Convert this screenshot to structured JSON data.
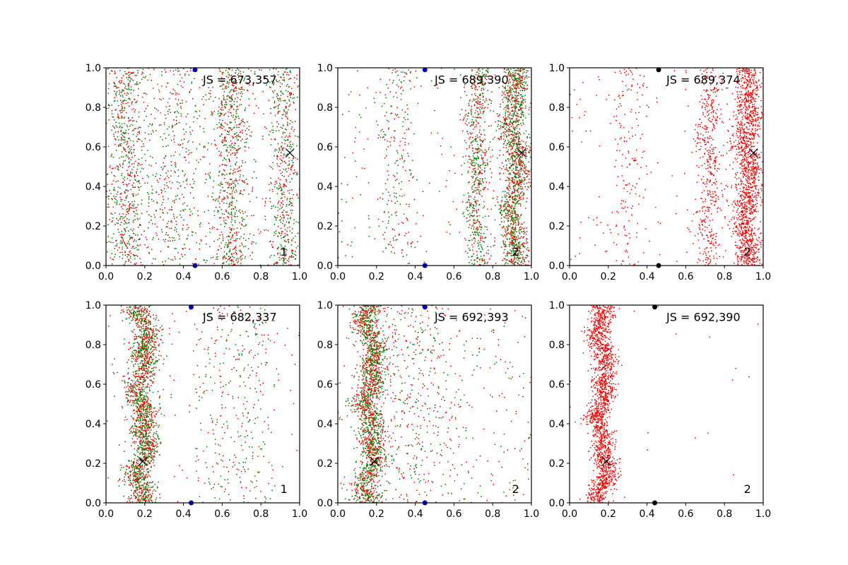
{
  "colors": {
    "red": "#ff0000",
    "green": "#008000",
    "blue": "#0000cc",
    "black": "#000000"
  },
  "chart_data": [
    {
      "type": "scatter",
      "panel": "top-left",
      "annotation": "JS = 673,357",
      "corner_label": "1",
      "xlim": [
        0.0,
        1.0
      ],
      "ylim": [
        0.0,
        1.0
      ],
      "x_ticks": [
        "0.0",
        "0.2",
        "0.4",
        "0.6",
        "0.8",
        "1.0"
      ],
      "y_ticks": [
        "0.0",
        "0.2",
        "0.4",
        "0.6",
        "0.8",
        "1.0"
      ],
      "series_colors": [
        "red",
        "green"
      ],
      "density_bands": [
        {
          "center": 0.1,
          "width": 0.05,
          "weight": 1.0
        },
        {
          "center": 0.65,
          "width": 0.05,
          "weight": 1.0
        },
        {
          "center": 0.92,
          "width": 0.04,
          "weight": 0.7
        },
        {
          "center": 0.35,
          "width": 0.08,
          "weight": 0.5
        }
      ],
      "uniform_weight": 0.6,
      "point_count": 2600,
      "wave_amplitude": 0.01,
      "marker_x": [
        0.95,
        0.57
      ],
      "markers_top": [
        {
          "x": 0.46,
          "y": 0.99,
          "color": "blue"
        }
      ],
      "markers_bottom": [
        {
          "x": 0.46,
          "y": 0.0,
          "color": "blue"
        }
      ]
    },
    {
      "type": "scatter",
      "panel": "top-middle",
      "annotation": "JS = 689,390",
      "corner_label": "2",
      "xlim": [
        0.0,
        1.0
      ],
      "ylim": [
        0.0,
        1.0
      ],
      "x_ticks": [
        "0.0",
        "0.2",
        "0.4",
        "0.6",
        "0.8",
        "1.0"
      ],
      "y_ticks": [
        "0.0",
        "0.2",
        "0.4",
        "0.6",
        "0.8",
        "1.0"
      ],
      "series_colors": [
        "red",
        "green"
      ],
      "density_bands": [
        {
          "center": 0.91,
          "width": 0.035,
          "weight": 3.0
        },
        {
          "center": 0.72,
          "width": 0.03,
          "weight": 1.2
        },
        {
          "center": 0.3,
          "width": 0.05,
          "weight": 0.4
        }
      ],
      "uniform_weight": 0.4,
      "point_count": 2600,
      "wave_amplitude": 0.015,
      "marker_x": [
        0.95,
        0.57
      ],
      "markers_top": [
        {
          "x": 0.45,
          "y": 0.99,
          "color": "blue"
        }
      ],
      "markers_bottom": [
        {
          "x": 0.45,
          "y": 0.0,
          "color": "blue"
        }
      ]
    },
    {
      "type": "scatter",
      "panel": "top-right",
      "annotation": "JS = 689,374",
      "corner_label": "2",
      "xlim": [
        0.0,
        1.0
      ],
      "ylim": [
        0.0,
        1.0
      ],
      "x_ticks": [
        "0.0",
        "0.2",
        "0.4",
        "0.6",
        "0.8",
        "1.0"
      ],
      "y_ticks": [
        "0.0",
        "0.2",
        "0.4",
        "0.6",
        "0.8",
        "1.0"
      ],
      "series_colors": [
        "red"
      ],
      "density_bands": [
        {
          "center": 0.92,
          "width": 0.035,
          "weight": 3.0
        },
        {
          "center": 0.72,
          "width": 0.03,
          "weight": 0.8
        },
        {
          "center": 0.3,
          "width": 0.05,
          "weight": 0.3
        }
      ],
      "uniform_weight": 0.25,
      "point_count": 2200,
      "wave_amplitude": 0.015,
      "marker_x": [
        0.95,
        0.57
      ],
      "markers_top": [
        {
          "x": 0.46,
          "y": 0.99,
          "color": "black"
        }
      ],
      "markers_bottom": [
        {
          "x": 0.46,
          "y": 0.0,
          "color": "black"
        }
      ]
    },
    {
      "type": "scatter",
      "panel": "bottom-left",
      "annotation": "JS = 682,337",
      "corner_label": "1",
      "xlim": [
        0.0,
        1.0
      ],
      "ylim": [
        0.0,
        1.0
      ],
      "x_ticks": [
        "0.0",
        "0.2",
        "0.4",
        "0.6",
        "0.8",
        "1.0"
      ],
      "y_ticks": [
        "0.0",
        "0.2",
        "0.4",
        "0.6",
        "0.8",
        "1.0"
      ],
      "series_colors": [
        "red",
        "green"
      ],
      "density_bands": [
        {
          "center": 0.19,
          "width": 0.035,
          "weight": 3.0
        },
        {
          "center": 0.6,
          "width": 0.08,
          "weight": 0.25
        },
        {
          "center": 0.75,
          "width": 0.06,
          "weight": 0.25
        }
      ],
      "uniform_weight": 0.25,
      "point_count": 2400,
      "wave_amplitude": 0.02,
      "marker_x": [
        0.19,
        0.21
      ],
      "markers_top": [
        {
          "x": 0.44,
          "y": 0.99,
          "color": "blue"
        }
      ],
      "markers_bottom": [
        {
          "x": 0.44,
          "y": 0.0,
          "color": "blue"
        }
      ]
    },
    {
      "type": "scatter",
      "panel": "bottom-middle",
      "annotation": "JS = 692,393",
      "corner_label": "2",
      "xlim": [
        0.0,
        1.0
      ],
      "ylim": [
        0.0,
        1.0
      ],
      "x_ticks": [
        "0.0",
        "0.2",
        "0.4",
        "0.6",
        "0.8",
        "1.0"
      ],
      "y_ticks": [
        "0.0",
        "0.2",
        "0.4",
        "0.6",
        "0.8",
        "1.0"
      ],
      "series_colors": [
        "red",
        "green"
      ],
      "density_bands": [
        {
          "center": 0.17,
          "width": 0.035,
          "weight": 3.0
        },
        {
          "center": 0.4,
          "width": 0.1,
          "weight": 0.5
        }
      ],
      "uniform_weight": 0.5,
      "point_count": 2600,
      "wave_amplitude": 0.02,
      "marker_x": [
        0.19,
        0.21
      ],
      "markers_top": [
        {
          "x": 0.45,
          "y": 0.99,
          "color": "blue"
        }
      ],
      "markers_bottom": [
        {
          "x": 0.45,
          "y": 0.0,
          "color": "blue"
        }
      ]
    },
    {
      "type": "scatter",
      "panel": "bottom-right",
      "annotation": "JS = 692,390",
      "corner_label": "2",
      "xlim": [
        0.0,
        1.0
      ],
      "ylim": [
        0.0,
        1.0
      ],
      "x_ticks": [
        "0.0",
        "0.2",
        "0.4",
        "0.6",
        "0.8",
        "1.0"
      ],
      "y_ticks": [
        "0.0",
        "0.2",
        "0.4",
        "0.6",
        "0.8",
        "1.0"
      ],
      "series_colors": [
        "red"
      ],
      "density_bands": [
        {
          "center": 0.17,
          "width": 0.03,
          "weight": 3.0
        }
      ],
      "uniform_weight": 0.04,
      "point_count": 1800,
      "wave_amplitude": 0.02,
      "marker_x": [
        0.19,
        0.21
      ],
      "markers_top": [
        {
          "x": 0.44,
          "y": 0.99,
          "color": "black"
        }
      ],
      "markers_bottom": [
        {
          "x": 0.44,
          "y": 0.0,
          "color": "black"
        }
      ]
    }
  ]
}
